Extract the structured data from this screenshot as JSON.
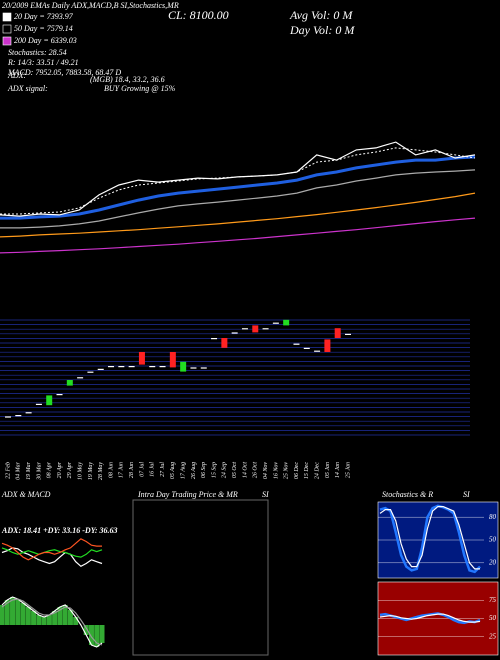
{
  "header": {
    "top": "20/2009 EMAs Daily ADX,MACD,B SI,Stochastics,MR",
    "close": "CL: 8100.00",
    "avg_vol": "Avg Vol: 0  M",
    "day_vol": "Day Vol: 0  M",
    "legend": [
      {
        "text": "20 Day = 7393.97",
        "color": "#ffffff"
      },
      {
        "text": "50 Day = 7579.14",
        "color": "#000000"
      },
      {
        "text": "200 Day = 6339.03",
        "color": "#cc33cc"
      }
    ],
    "lines": [
      "Stochastics: 28.54",
      "R: 14/3: 33.51 / 49.21",
      "MACD: 7952.05, 7883.58, 68.47 D"
    ],
    "adx": "ADX:",
    "adx_values": "(MGB) 18.4, 33.2, 36.6",
    "adx_signal": "ADX  signal:",
    "adx_signal_value": "BUY Growing @ 15%"
  },
  "main": {
    "ylim": [
      0,
      100
    ],
    "series": [
      {
        "color": "#ff9a1a",
        "style": "solid",
        "values": [
          18.3,
          18.6,
          19.0,
          19.3,
          19.6,
          20.0,
          20.4,
          20.8,
          21.3,
          21.8,
          22.3,
          22.8,
          23.4,
          24.0,
          24.6,
          25.3,
          26.0,
          26.8,
          27.6,
          28.4,
          29.3,
          30.2,
          31.2,
          32.2,
          33.4
        ]
      },
      {
        "color": "#cc33cc",
        "style": "solid",
        "values": [
          12.8,
          13.0,
          13.3,
          13.6,
          13.9,
          14.2,
          14.6,
          15.0,
          15.4,
          15.8,
          16.3,
          16.8,
          17.3,
          17.8,
          18.4,
          19.0,
          19.6,
          20.2,
          20.8,
          21.5,
          22.2,
          22.9,
          23.6,
          24.2,
          24.8
        ]
      },
      {
        "color": "#aaaaaa",
        "style": "solid",
        "values": [
          21.4,
          21.4,
          21.7,
          22.1,
          22.8,
          23.8,
          25.2,
          26.6,
          27.9,
          29.0,
          29.7,
          30.3,
          31.0,
          31.7,
          32.4,
          33.4,
          35.2,
          36.2,
          37.6,
          38.6,
          39.7,
          40.3,
          40.7,
          41.0,
          41.4
        ]
      },
      {
        "color": "#1f5fe0",
        "style": "thick",
        "values": [
          24.8,
          24.8,
          25.2,
          25.5,
          26.2,
          27.6,
          29.3,
          31.0,
          32.4,
          33.4,
          34.1,
          34.8,
          35.5,
          36.2,
          36.9,
          37.9,
          39.7,
          40.7,
          42.1,
          43.1,
          44.1,
          44.8,
          44.8,
          45.5,
          45.9
        ]
      },
      {
        "color": "#ffffff",
        "style": "dotted",
        "values": [
          26.2,
          26.2,
          26.6,
          26.9,
          28.3,
          31.7,
          34.5,
          36.2,
          36.9,
          37.6,
          38.3,
          38.6,
          39.0,
          39.3,
          39.7,
          40.7,
          44.1,
          44.8,
          46.6,
          47.6,
          49.0,
          48.3,
          47.6,
          46.6,
          45.5
        ]
      },
      {
        "color": "#ffffff",
        "style": "solid",
        "values": [
          25.9,
          25.5,
          26.2,
          25.9,
          27.6,
          32.8,
          36.2,
          37.9,
          37.2,
          37.9,
          38.6,
          38.3,
          39.0,
          39.3,
          39.7,
          40.7,
          46.6,
          44.8,
          48.3,
          49.0,
          51.0,
          46.6,
          48.3,
          45.5,
          46.6
        ]
      }
    ]
  },
  "candles": {
    "ylim": [
      0,
      100
    ],
    "up_color": "#22dd22",
    "down_color": "#ff2222",
    "flat_color": "#ffffff",
    "open": [
      24,
      25,
      27,
      33,
      32,
      40,
      46,
      52,
      56,
      58,
      60,
      60,
      60,
      70,
      60,
      60,
      70,
      56,
      59,
      59,
      80,
      80,
      84,
      87,
      89,
      87,
      91,
      89,
      76,
      73,
      71,
      79,
      87,
      83
    ],
    "close": [
      24,
      25,
      27,
      33,
      39,
      40,
      50,
      52,
      56,
      58,
      60,
      60,
      60,
      61,
      60,
      60,
      59,
      63,
      59,
      59,
      80,
      73,
      84,
      87,
      84,
      87,
      91,
      93,
      76,
      73,
      71,
      70,
      80,
      83
    ],
    "dates": [
      "22 Feb",
      "04 Mar",
      "19 Mar",
      "30 Mar",
      "08 Apr",
      "20 Apr",
      "29 Apr",
      "10 May",
      "19 May",
      "28 May",
      "08 Jun",
      "17 Jun",
      "28 Jun",
      "07 Jul",
      "16 Jul",
      "27 Jul",
      "05 Aug",
      "17 Aug",
      "26 Aug",
      "06 Sep",
      "15 Sep",
      "24 Sep",
      "05 Oct",
      "14 Oct",
      "26 Oct",
      "04 Nov",
      "16 Nov",
      "25 Nov",
      "06 Dec",
      "15 Dec",
      "24 Dec",
      "05 Jan",
      "14 Jan",
      "25 Jan"
    ]
  },
  "panels": {
    "adx_title": "ADX  & MACD",
    "intraday_title": "Intra Day Trading Price  & MR",
    "intraday_si": "SI",
    "stoch_title": "Stochastics & R",
    "stoch_si": "SI",
    "adx_label": "ADX: 18.41 +DY: 33.16  -DY: 36.63"
  },
  "adx": {
    "ylim": [
      0,
      60
    ],
    "series": [
      {
        "color": "#ffffff",
        "values": [
          30,
          32,
          35,
          34,
          30,
          28,
          25,
          22,
          20,
          18,
          20,
          25,
          30,
          28,
          20,
          15,
          18,
          22,
          20,
          18
        ]
      },
      {
        "color": "#22dd22",
        "values": [
          35,
          33,
          30,
          28,
          30,
          32,
          30,
          28,
          30,
          32,
          33,
          31,
          30,
          28,
          26,
          25,
          28,
          33,
          31,
          33
        ]
      },
      {
        "color": "#ff5522",
        "values": [
          40,
          38,
          35,
          30,
          25,
          22,
          25,
          28,
          30,
          30,
          28,
          30,
          33,
          35,
          40,
          45,
          42,
          38,
          37,
          37
        ]
      }
    ]
  },
  "macd": {
    "ylim": [
      -30,
      35
    ],
    "series": [
      {
        "color": "#ffffff",
        "values": [
          20,
          25,
          28,
          26,
          22,
          18,
          14,
          10,
          8,
          10,
          14,
          18,
          20,
          15,
          8,
          0,
          -10,
          -20,
          -22,
          -18
        ]
      },
      {
        "color": "#999999",
        "values": [
          18,
          22,
          25,
          26,
          24,
          20,
          16,
          12,
          10,
          10,
          12,
          15,
          18,
          17,
          12,
          5,
          -3,
          -12,
          -18,
          -20
        ]
      }
    ],
    "fill": "#33aa33"
  },
  "stoch": {
    "ylim": [
      0,
      100
    ],
    "background": "#001a80",
    "yticks": [
      80,
      50,
      20
    ],
    "series": [
      {
        "color": "#2277ff",
        "values": [
          90,
          92,
          88,
          60,
          30,
          15,
          10,
          12,
          40,
          80,
          92,
          95,
          93,
          90,
          85,
          60,
          30,
          10,
          8,
          15
        ]
      },
      {
        "color": "#ffffff",
        "values": [
          85,
          90,
          90,
          75,
          45,
          25,
          15,
          15,
          30,
          65,
          88,
          94,
          94,
          91,
          88,
          70,
          45,
          20,
          12,
          12
        ]
      }
    ]
  },
  "rsi": {
    "ylim": [
      0,
      100
    ],
    "background": "#990000",
    "yticks": [
      75,
      50,
      25
    ],
    "series": [
      {
        "color": "#2277ff",
        "values": [
          55,
          56,
          54,
          52,
          50,
          48,
          50,
          52,
          54,
          55,
          56,
          57,
          55,
          52,
          48,
          45,
          44,
          46,
          45,
          48
        ]
      },
      {
        "color": "#ffffff",
        "values": [
          52,
          53,
          54,
          53,
          51,
          50,
          49,
          50,
          52,
          54,
          55,
          56,
          56,
          54,
          51,
          48,
          46,
          45,
          45,
          46
        ]
      }
    ]
  }
}
